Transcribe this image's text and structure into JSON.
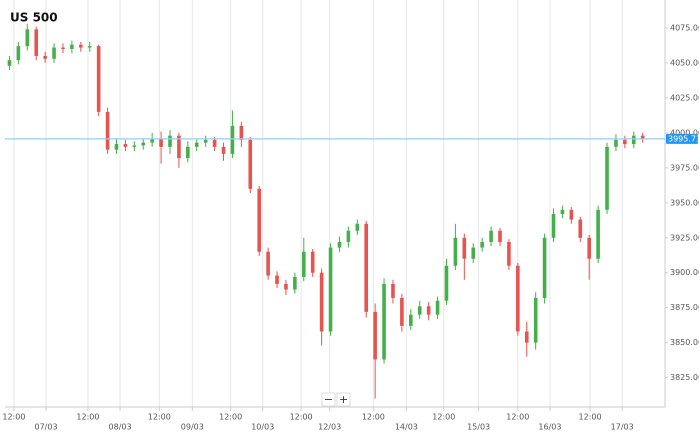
{
  "chart_data": {
    "type": "candlestick",
    "title": "US 500",
    "x": [
      0,
      1,
      2,
      3,
      4,
      5,
      6,
      7,
      8,
      9,
      10,
      11,
      12,
      13,
      14,
      15,
      16,
      17,
      18,
      19,
      20,
      21,
      22,
      23,
      24,
      25,
      26,
      27,
      28,
      29,
      30,
      31,
      32,
      33,
      34,
      35,
      36,
      37,
      38,
      39,
      40,
      41,
      42,
      43,
      44,
      45,
      46,
      47,
      48,
      49,
      50,
      51,
      52,
      53,
      54,
      55,
      56,
      57,
      58,
      59,
      60,
      61,
      62,
      63,
      64,
      65,
      66,
      67,
      68,
      69,
      70,
      71
    ],
    "open": [
      4048,
      4052,
      4062,
      4074,
      4055,
      4053,
      4061,
      4060,
      4063,
      4061,
      4062,
      4015,
      3988,
      3992,
      3990,
      3991,
      3993,
      3996,
      3990,
      3998,
      3982,
      3990,
      3993,
      3995,
      3990,
      3985,
      4005,
      3995,
      3960,
      3915,
      3898,
      3892,
      3888,
      3897,
      3915,
      3900,
      3858,
      3918,
      3922,
      3930,
      3935,
      3872,
      3838,
      3892,
      3882,
      3862,
      3870,
      3876,
      3870,
      3880,
      3905,
      3925,
      3910,
      3918,
      3922,
      3930,
      3922,
      3905,
      3858,
      3850,
      3882,
      3925,
      3942,
      3945,
      3938,
      3925,
      3910,
      3945,
      3990,
      3995,
      3992,
      3998
    ],
    "high": [
      4055,
      4065,
      4078,
      4076,
      4058,
      4064,
      4064,
      4066,
      4065,
      4065,
      4063,
      4018,
      3996,
      3995,
      3994,
      3996,
      4000,
      4001,
      4002,
      4000,
      3994,
      3996,
      3998,
      3997,
      3993,
      4016,
      4008,
      3997,
      3962,
      3918,
      3901,
      3895,
      3900,
      3925,
      3917,
      3903,
      3921,
      3926,
      3933,
      3938,
      3937,
      3878,
      3896,
      3895,
      3885,
      3874,
      3880,
      3879,
      3883,
      3910,
      3935,
      3928,
      3921,
      3925,
      3933,
      3932,
      3924,
      3907,
      3865,
      3886,
      3928,
      3946,
      3948,
      3947,
      3940,
      3927,
      3948,
      3993,
      3999,
      3998,
      4001,
      4000
    ],
    "low": [
      4045,
      4049,
      4059,
      4052,
      4050,
      4050,
      4057,
      4057,
      4058,
      4058,
      4012,
      3985,
      3985,
      3987,
      3987,
      3988,
      3990,
      3978,
      3985,
      3975,
      3979,
      3987,
      3990,
      3987,
      3980,
      3982,
      3990,
      3957,
      3912,
      3895,
      3889,
      3884,
      3885,
      3894,
      3897,
      3848,
      3855,
      3915,
      3918,
      3927,
      3868,
      3810,
      3835,
      3878,
      3858,
      3859,
      3867,
      3866,
      3867,
      3877,
      3902,
      3895,
      3907,
      3915,
      3919,
      3919,
      3902,
      3855,
      3840,
      3845,
      3878,
      3922,
      3939,
      3935,
      3922,
      3895,
      3907,
      3942,
      3987,
      3989,
      3989,
      3993
    ],
    "close": [
      4052,
      4062,
      4074,
      4055,
      4053,
      4061,
      4060,
      4063,
      4061,
      4062,
      4015,
      3988,
      3992,
      3990,
      3991,
      3993,
      3996,
      3990,
      3998,
      3982,
      3990,
      3993,
      3995,
      3990,
      3985,
      4005,
      3995,
      3960,
      3915,
      3898,
      3892,
      3888,
      3897,
      3915,
      3900,
      3858,
      3918,
      3922,
      3930,
      3935,
      3872,
      3838,
      3892,
      3882,
      3862,
      3870,
      3876,
      3870,
      3880,
      3905,
      3925,
      3910,
      3918,
      3922,
      3930,
      3922,
      3905,
      3858,
      3850,
      3882,
      3925,
      3942,
      3945,
      3938,
      3925,
      3910,
      3945,
      3990,
      3995,
      3992,
      3998,
      3996
    ],
    "up_color": "#43b049",
    "down_color": "#e8534f",
    "xlim": [
      -0.5,
      73.5
    ],
    "xticks": [
      {
        "value": 0.5,
        "label": "12:00"
      },
      {
        "value": 4.1,
        "label": "07/03"
      },
      {
        "value": 8.8,
        "label": "12:00"
      },
      {
        "value": 12.4,
        "label": "08/03"
      },
      {
        "value": 16.8,
        "label": "12:00"
      },
      {
        "value": 20.5,
        "label": "09/03"
      },
      {
        "value": 24.8,
        "label": "12:00"
      },
      {
        "value": 28.4,
        "label": "10/03"
      },
      {
        "value": 32.7,
        "label": "12:00"
      },
      {
        "value": 35.9,
        "label": "12/03"
      },
      {
        "value": 40.8,
        "label": "12:00"
      },
      {
        "value": 44.5,
        "label": "14/03"
      },
      {
        "value": 48.7,
        "label": "12:00"
      },
      {
        "value": 52.6,
        "label": "15/03"
      },
      {
        "value": 57.0,
        "label": "12:00"
      },
      {
        "value": 60.6,
        "label": "16/03"
      },
      {
        "value": 65.1,
        "label": "12:00"
      },
      {
        "value": 68.7,
        "label": "17/03"
      }
    ],
    "ylim": [
      3804,
      4095
    ],
    "yticks": [
      {
        "value": 3825,
        "label": "3825.00"
      },
      {
        "value": 3850,
        "label": "3850.00"
      },
      {
        "value": 3875,
        "label": "3875.00"
      },
      {
        "value": 3900,
        "label": "3900.00"
      },
      {
        "value": 3925,
        "label": "3925.00"
      },
      {
        "value": 3950,
        "label": "3950.00"
      },
      {
        "value": 3975,
        "label": "3975.00"
      },
      {
        "value": 4000,
        "label": "4000.00"
      },
      {
        "value": 4025,
        "label": "4025.00"
      },
      {
        "value": 4050,
        "label": "4050.00"
      },
      {
        "value": 4075,
        "label": "4075.00"
      }
    ],
    "current_price": 3995.73,
    "current_price_color": "#8fd0f5",
    "current_price_box_color": "#2196f3",
    "grid": "vertical",
    "zoom_controls": [
      "−",
      "+"
    ]
  }
}
